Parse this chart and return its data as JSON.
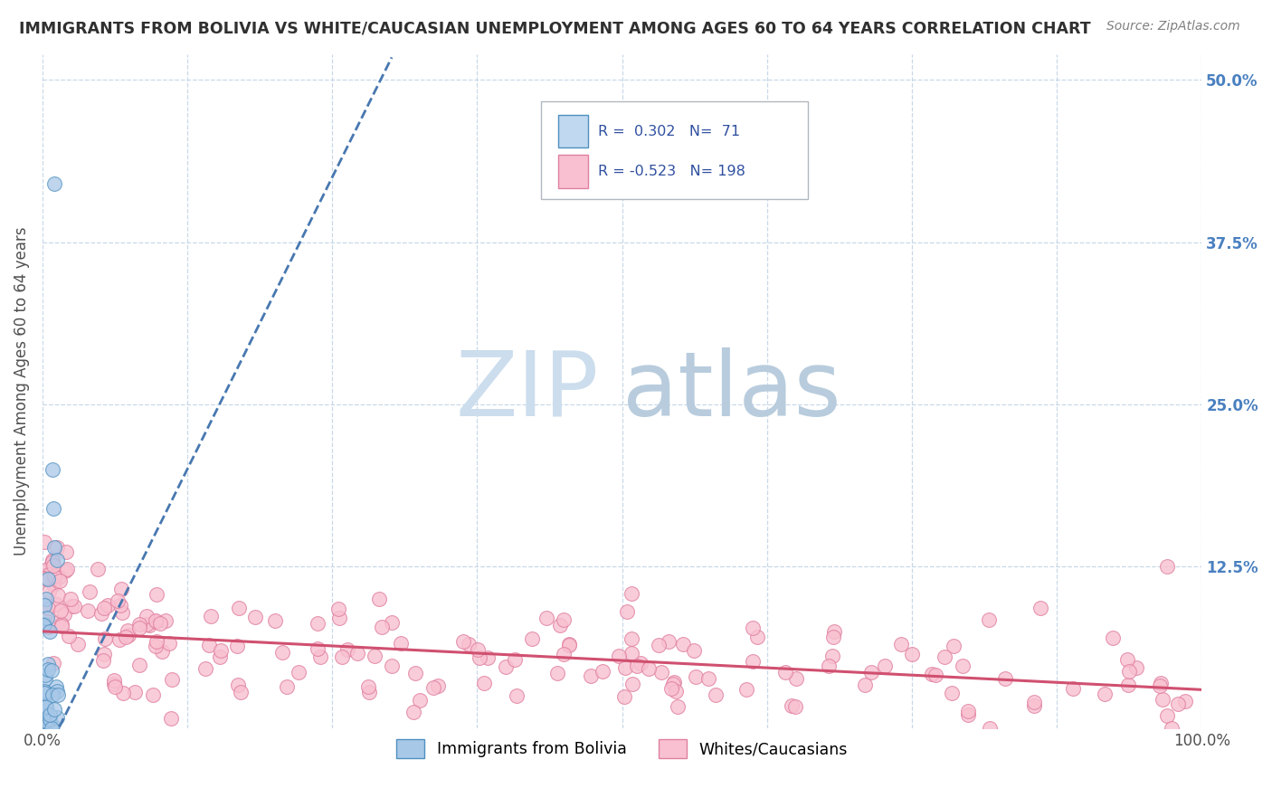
{
  "title": "IMMIGRANTS FROM BOLIVIA VS WHITE/CAUCASIAN UNEMPLOYMENT AMONG AGES 60 TO 64 YEARS CORRELATION CHART",
  "source": "Source: ZipAtlas.com",
  "xlabel": "",
  "ylabel": "Unemployment Among Ages 60 to 64 years",
  "xlim": [
    0,
    1.0
  ],
  "ylim": [
    0,
    0.52
  ],
  "xtick_labels": [
    "0.0%",
    "",
    "",
    "",
    "",
    "",
    "",
    "",
    "100.0%"
  ],
  "xtick_vals": [
    0,
    0.125,
    0.25,
    0.375,
    0.5,
    0.625,
    0.75,
    0.875,
    1.0
  ],
  "ytick_labels": [
    "12.5%",
    "25.0%",
    "37.5%",
    "50.0%"
  ],
  "ytick_vals": [
    0.125,
    0.25,
    0.375,
    0.5
  ],
  "bolivia_R": 0.302,
  "bolivia_N": 71,
  "white_R": -0.523,
  "white_N": 198,
  "blue_dot_color": "#a8c8e8",
  "blue_edge": "#5090c0",
  "pink_color": "#f8c0d0",
  "pink_edge": "#e080a0",
  "trendline_blue": "#4878b0",
  "trendline_pink": "#d05070",
  "watermark_ZIP": "#c8daf0",
  "watermark_atlas": "#b8cce8",
  "legend_box_blue": "#c0d8f0",
  "legend_box_pink": "#f8c0d0",
  "background": "#ffffff",
  "grid_color": "#c8d8e8",
  "title_color": "#303030",
  "axis_label_color": "#505050",
  "legend_text_color": "#3050a0",
  "right_tick_color": "#4a80c0"
}
